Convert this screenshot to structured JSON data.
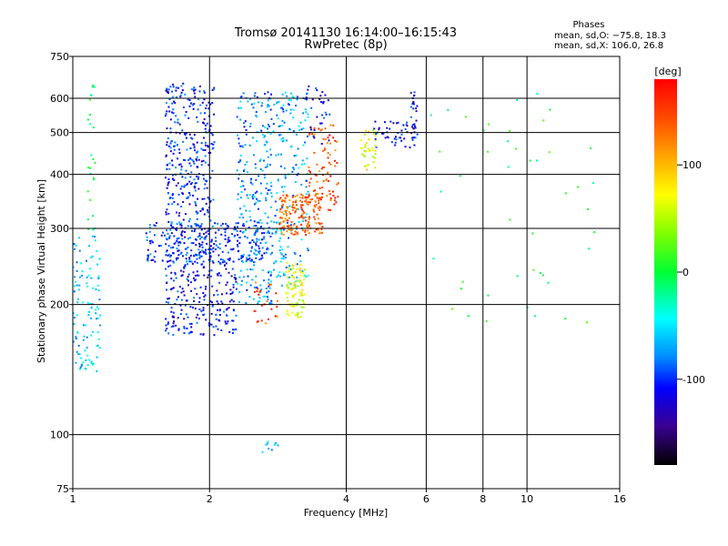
{
  "chart_data": {
    "type": "scatter",
    "title": "Tromsø 20141130 16:14:00–16:15:43",
    "subtitle": "RwPretec (8p)",
    "xlabel": "Frequency [MHz]",
    "ylabel": "Stationary phase Virtual Height [km]",
    "x_scale": "log",
    "y_scale": "log",
    "xlim": [
      1,
      16
    ],
    "ylim": [
      75,
      750
    ],
    "x_ticks": [
      1,
      2,
      4,
      6,
      8,
      10,
      16
    ],
    "x_tick_labels": [
      "1",
      "2",
      "4",
      "6",
      "8",
      "10",
      "16"
    ],
    "y_ticks": [
      75,
      100,
      200,
      300,
      400,
      500,
      600,
      750
    ],
    "y_tick_labels": [
      "75",
      "100",
      "200",
      "300",
      "400",
      "500",
      "600",
      "750"
    ],
    "grid": true,
    "phase_box": {
      "title": "Phases",
      "line1": "mean, sd,O: −75.8, 18.3",
      "line2": "mean, sd,X: 106.0, 26.8"
    },
    "colorbar": {
      "label": "[deg]",
      "range": [
        -180,
        180
      ],
      "ticks": [
        100,
        0,
        -100
      ],
      "tick_labels": [
        "100",
        "0",
        "-100"
      ]
    },
    "clusters": [
      {
        "x": [
          1.0,
          1.15
        ],
        "y": [
          140,
          290
        ],
        "phase": -60,
        "n": 110
      },
      {
        "x": [
          1.08,
          1.12
        ],
        "y": [
          290,
          650
        ],
        "phase": -10,
        "n": 25
      },
      {
        "x": [
          1.6,
          2.05
        ],
        "y": [
          250,
          650
        ],
        "phase": -105,
        "n": 380
      },
      {
        "x": [
          1.45,
          2.7
        ],
        "y": [
          250,
          310
        ],
        "phase": -100,
        "n": 260
      },
      {
        "x": [
          1.6,
          2.3
        ],
        "y": [
          170,
          250
        ],
        "phase": -110,
        "n": 230
      },
      {
        "x": [
          2.3,
          2.75
        ],
        "y": [
          200,
          620
        ],
        "phase": -80,
        "n": 260
      },
      {
        "x": [
          2.75,
          3.3
        ],
        "y": [
          220,
          620
        ],
        "phase": -70,
        "n": 190
      },
      {
        "x": [
          2.85,
          3.55
        ],
        "y": [
          290,
          360
        ],
        "phase": 140,
        "n": 170
      },
      {
        "x": [
          3.3,
          3.85
        ],
        "y": [
          330,
          520
        ],
        "phase": 150,
        "n": 90
      },
      {
        "x": [
          2.95,
          3.25
        ],
        "y": [
          185,
          250
        ],
        "phase": 70,
        "n": 90
      },
      {
        "x": [
          2.5,
          2.85
        ],
        "y": [
          180,
          230
        ],
        "phase": 150,
        "n": 25
      },
      {
        "x": [
          3.25,
          3.7
        ],
        "y": [
          470,
          640
        ],
        "phase": -110,
        "n": 35
      },
      {
        "x": [
          4.3,
          4.65
        ],
        "y": [
          410,
          510
        ],
        "phase": 75,
        "n": 40
      },
      {
        "x": [
          4.6,
          5.7
        ],
        "y": [
          460,
          530
        ],
        "phase": -110,
        "n": 45
      },
      {
        "x": [
          5.55,
          5.75
        ],
        "y": [
          480,
          620
        ],
        "phase": -115,
        "n": 30
      },
      {
        "x": [
          6.0,
          15.0
        ],
        "y": [
          180,
          620
        ],
        "phase": 0,
        "n": 45
      },
      {
        "x": [
          2.55,
          2.85
        ],
        "y": [
          90,
          97
        ],
        "phase": -60,
        "n": 10
      }
    ]
  }
}
